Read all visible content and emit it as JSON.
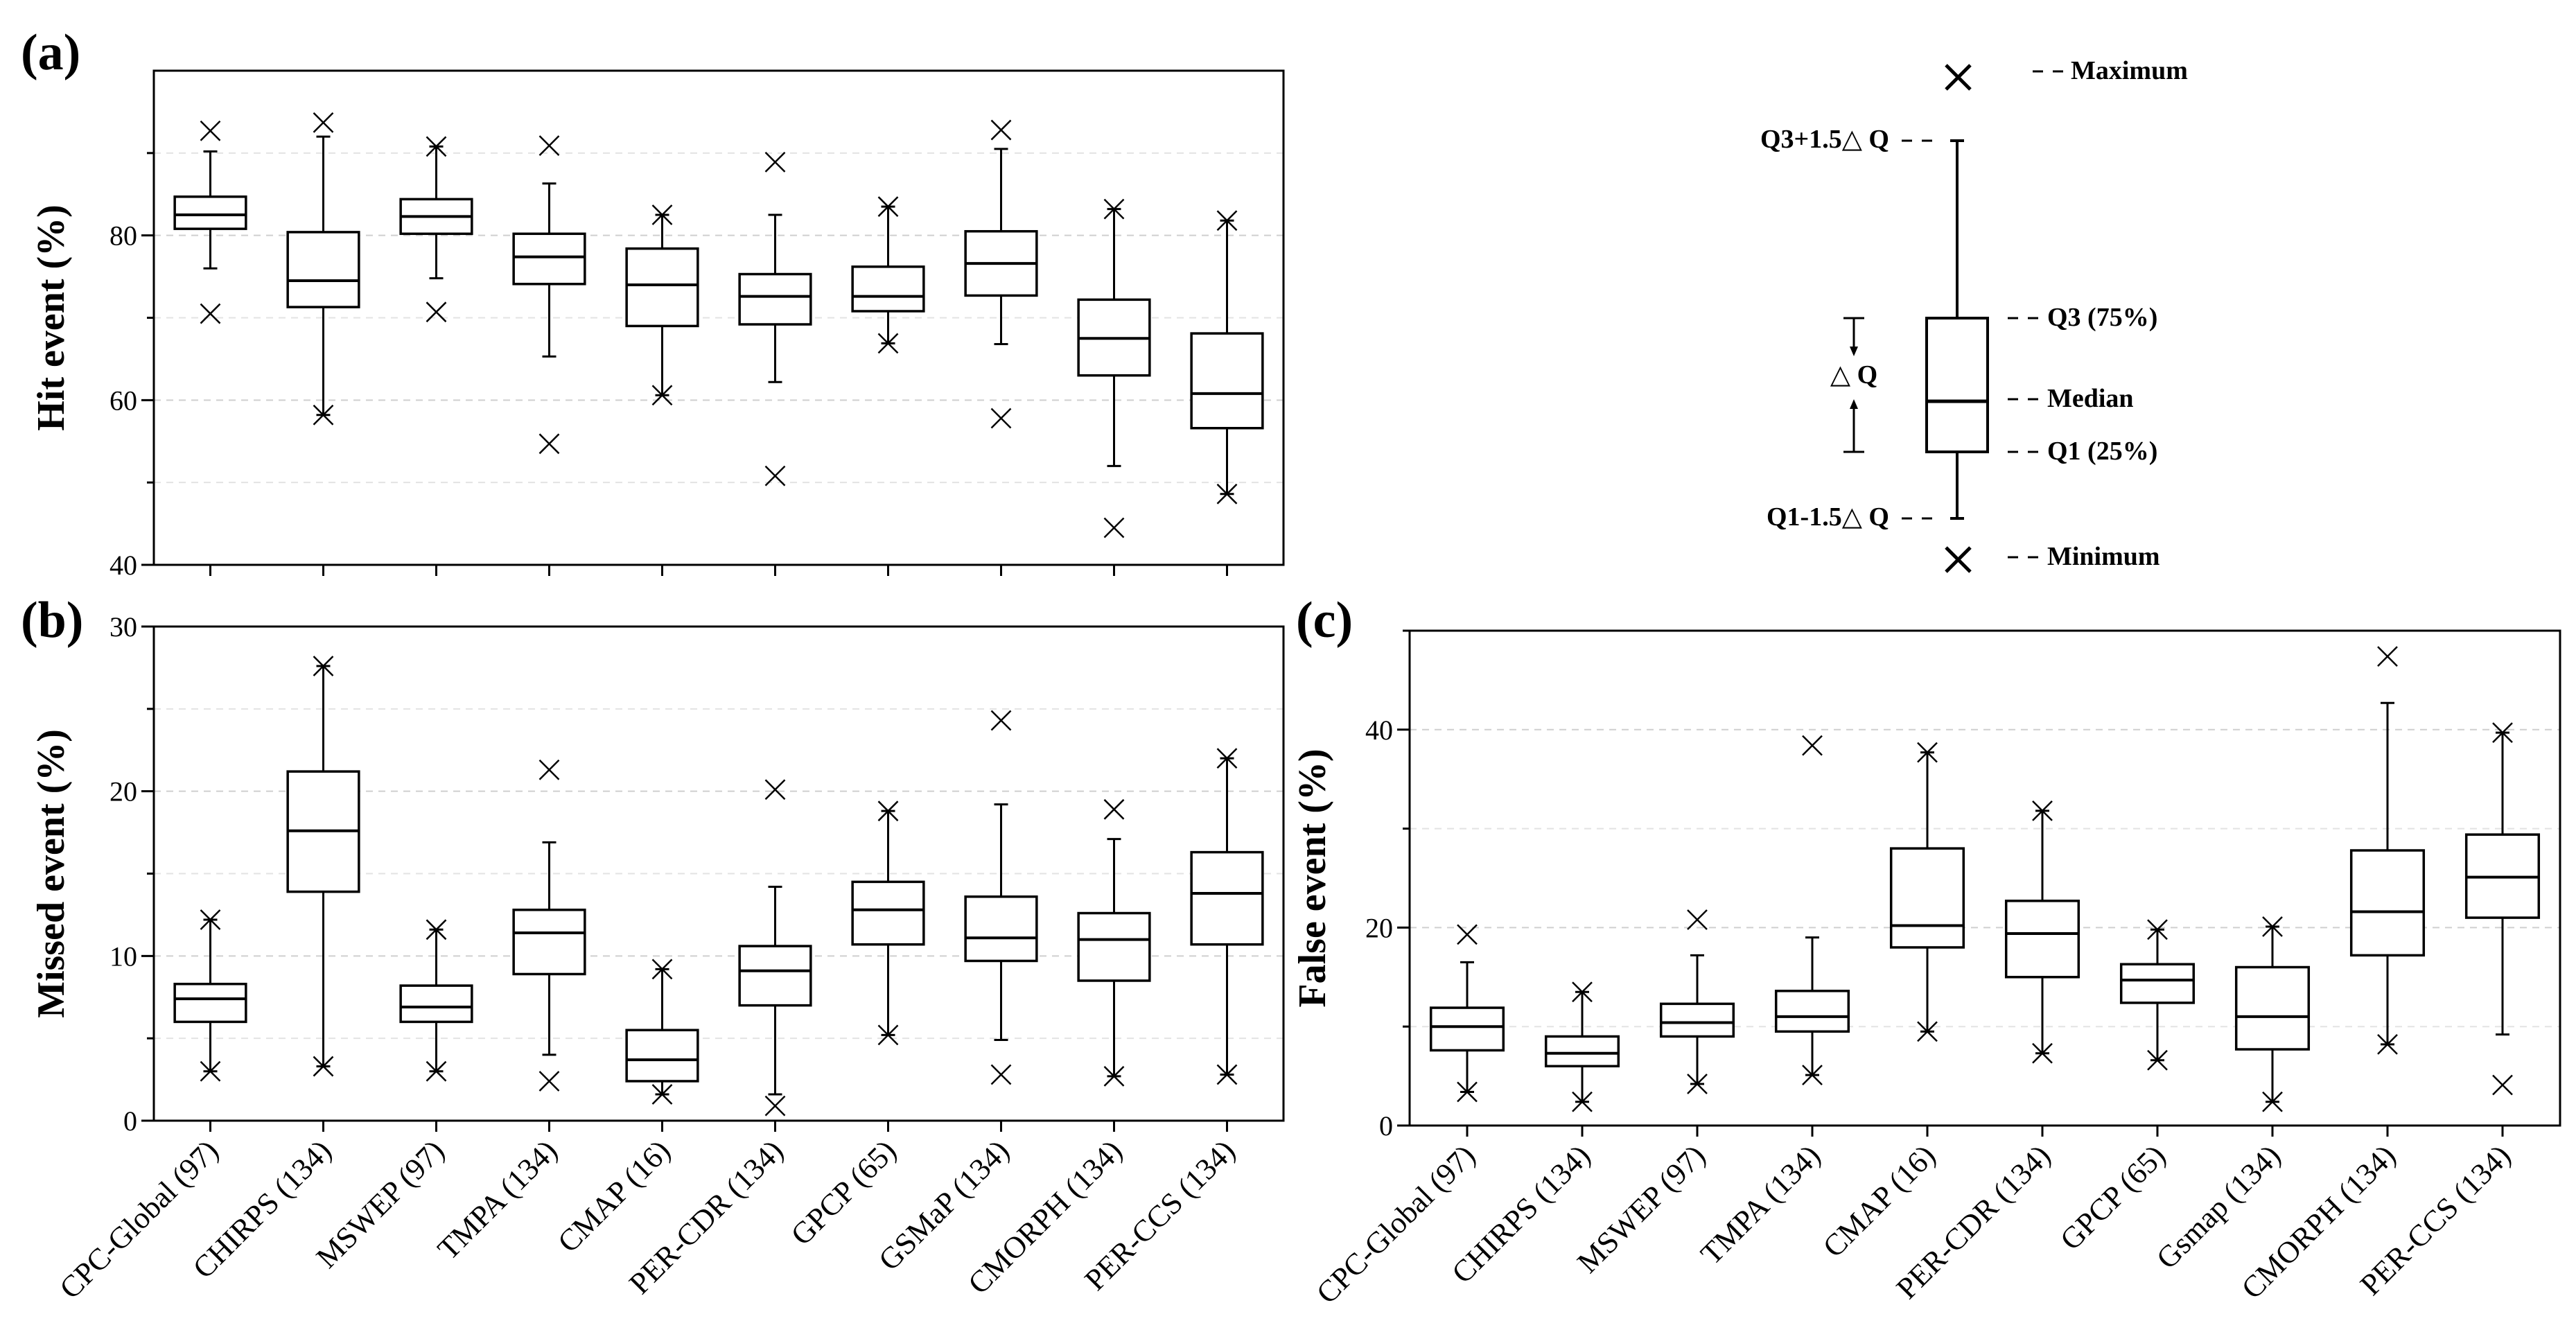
{
  "chart_data": [
    {
      "id": "a",
      "type": "box",
      "panel_label": "(a)",
      "ylabel": "Hit event (%)",
      "ylim": [
        40,
        100
      ],
      "yticks": [
        40,
        60,
        80
      ],
      "grid": "horizontal-dashed",
      "categories": [
        "CPC-Global (97)",
        "CHIRPS (134)",
        "MSWEP (97)",
        "TMPA (134)",
        "CMAP (16)",
        "PER-CDR (134)",
        "GPCP (65)",
        "GSMaP (134)",
        "CMORPH (134)",
        "PER-CCS (134)"
      ],
      "show_category_labels": false,
      "boxes": [
        {
          "min": 70.5,
          "whisker_low": 76,
          "q1": 80.8,
          "median": 82.5,
          "q3": 84.7,
          "whisker_high": 90.2,
          "max": 92.7
        },
        {
          "min": 58.2,
          "whisker_low": 58.2,
          "q1": 71.3,
          "median": 74.5,
          "q3": 80.4,
          "whisker_high": 92,
          "max": 93.7
        },
        {
          "min": 70.7,
          "whisker_low": 74.8,
          "q1": 80.2,
          "median": 82.3,
          "q3": 84.4,
          "whisker_high": 90.8,
          "max": 90.8
        },
        {
          "min": 54.7,
          "whisker_low": 65.3,
          "q1": 74.1,
          "median": 77.4,
          "q3": 80.2,
          "whisker_high": 86.3,
          "max": 90.9
        },
        {
          "min": 60.6,
          "whisker_low": 60.6,
          "q1": 69.0,
          "median": 74.0,
          "q3": 78.4,
          "whisker_high": 82.5,
          "max": 82.5
        },
        {
          "min": 50.8,
          "whisker_low": 62.2,
          "q1": 69.2,
          "median": 72.6,
          "q3": 75.3,
          "whisker_high": 82.5,
          "max": 88.9
        },
        {
          "min": 66.9,
          "whisker_low": 66.9,
          "q1": 70.8,
          "median": 72.6,
          "q3": 76.2,
          "whisker_high": 83.5,
          "max": 83.5
        },
        {
          "min": 57.8,
          "whisker_low": 66.8,
          "q1": 72.7,
          "median": 76.6,
          "q3": 80.5,
          "whisker_high": 90.5,
          "max": 92.8
        },
        {
          "min": 44.5,
          "whisker_low": 52.0,
          "q1": 63.0,
          "median": 67.5,
          "q3": 72.2,
          "whisker_high": 83.2,
          "max": 83.2
        },
        {
          "min": 48.6,
          "whisker_low": 48.6,
          "q1": 56.6,
          "median": 60.8,
          "q3": 68.1,
          "whisker_high": 81.8,
          "max": 81.8
        }
      ]
    },
    {
      "id": "b",
      "type": "box",
      "panel_label": "(b)",
      "ylabel": "Missed event (%)",
      "ylim": [
        0,
        30
      ],
      "yticks": [
        0,
        10,
        20,
        30
      ],
      "grid": "horizontal-dashed",
      "categories": [
        "CPC-Global (97)",
        "CHIRPS (134)",
        "MSWEP (97)",
        "TMPA (134)",
        "CMAP (16)",
        "PER-CDR (134)",
        "GPCP (65)",
        "GSMaP (134)",
        "CMORPH (134)",
        "PER-CCS (134)"
      ],
      "show_category_labels": true,
      "boxes": [
        {
          "min": 3.0,
          "whisker_low": 3.0,
          "q1": 6.0,
          "median": 7.4,
          "q3": 8.3,
          "whisker_high": 12.2,
          "max": 12.2
        },
        {
          "min": 3.3,
          "whisker_low": 3.3,
          "q1": 13.9,
          "median": 17.6,
          "q3": 21.2,
          "whisker_high": 27.6,
          "max": 27.6
        },
        {
          "min": 3.0,
          "whisker_low": 3.0,
          "q1": 6.0,
          "median": 6.9,
          "q3": 8.2,
          "whisker_high": 11.6,
          "max": 11.6
        },
        {
          "min": 2.4,
          "whisker_low": 4.0,
          "q1": 8.9,
          "median": 11.4,
          "q3": 12.8,
          "whisker_high": 16.9,
          "max": 21.3
        },
        {
          "min": 1.6,
          "whisker_low": 1.6,
          "q1": 2.4,
          "median": 3.7,
          "q3": 5.5,
          "whisker_high": 9.2,
          "max": 9.2
        },
        {
          "min": 0.9,
          "whisker_low": 1.6,
          "q1": 7.0,
          "median": 9.1,
          "q3": 10.6,
          "whisker_high": 14.2,
          "max": 20.1
        },
        {
          "min": 5.2,
          "whisker_low": 5.2,
          "q1": 10.7,
          "median": 12.8,
          "q3": 14.5,
          "whisker_high": 18.8,
          "max": 18.8
        },
        {
          "min": 2.8,
          "whisker_low": 4.9,
          "q1": 9.7,
          "median": 11.1,
          "q3": 13.6,
          "whisker_high": 19.2,
          "max": 24.3
        },
        {
          "min": 2.7,
          "whisker_low": 2.7,
          "q1": 8.5,
          "median": 11.0,
          "q3": 12.6,
          "whisker_high": 17.1,
          "max": 18.9
        },
        {
          "min": 2.8,
          "whisker_low": 2.8,
          "q1": 10.7,
          "median": 13.8,
          "q3": 16.3,
          "whisker_high": 22.0,
          "max": 22.0
        }
      ]
    },
    {
      "id": "c",
      "type": "box",
      "panel_label": "(c)",
      "ylabel": "False event (%)",
      "ylim": [
        0,
        50
      ],
      "yticks": [
        0,
        20,
        40
      ],
      "grid": "horizontal-dashed",
      "categories": [
        "CPC-Global (97)",
        "CHIRPS (134)",
        "MSWEP (97)",
        "TMPA (134)",
        "CMAP (16)",
        "PER-CDR (134)",
        "GPCP (65)",
        "Gsmap (134)",
        "CMORPH (134)",
        "PER-CCS (134)"
      ],
      "show_category_labels": true,
      "boxes": [
        {
          "min": 3.4,
          "whisker_low": 3.4,
          "q1": 7.6,
          "median": 10.0,
          "q3": 11.9,
          "whisker_high": 16.5,
          "max": 19.3
        },
        {
          "min": 2.4,
          "whisker_low": 2.4,
          "q1": 6.0,
          "median": 7.3,
          "q3": 9.0,
          "whisker_high": 13.5,
          "max": 13.5
        },
        {
          "min": 4.2,
          "whisker_low": 4.2,
          "q1": 9.0,
          "median": 10.4,
          "q3": 12.3,
          "whisker_high": 17.2,
          "max": 20.8
        },
        {
          "min": 5.1,
          "whisker_low": 5.1,
          "q1": 9.5,
          "median": 11.0,
          "q3": 13.6,
          "whisker_high": 19.0,
          "max": 38.4
        },
        {
          "min": 9.5,
          "whisker_low": 9.5,
          "q1": 18.0,
          "median": 20.2,
          "q3": 28.0,
          "whisker_high": 37.7,
          "max": 37.7
        },
        {
          "min": 7.3,
          "whisker_low": 7.3,
          "q1": 15.0,
          "median": 19.4,
          "q3": 22.7,
          "whisker_high": 31.8,
          "max": 31.8
        },
        {
          "min": 6.6,
          "whisker_low": 6.6,
          "q1": 12.4,
          "median": 14.7,
          "q3": 16.3,
          "whisker_high": 19.8,
          "max": 19.8
        },
        {
          "min": 2.4,
          "whisker_low": 2.4,
          "q1": 7.7,
          "median": 11.0,
          "q3": 16.0,
          "whisker_high": 20.1,
          "max": 20.1
        },
        {
          "min": 8.2,
          "whisker_low": 8.2,
          "q1": 17.2,
          "median": 21.6,
          "q3": 27.8,
          "whisker_high": 42.7,
          "max": 47.4
        },
        {
          "min": 4.1,
          "whisker_low": 9.2,
          "q1": 21.0,
          "median": 25.1,
          "q3": 29.4,
          "whisker_high": 39.7,
          "max": 39.7
        }
      ]
    }
  ],
  "legend": {
    "maximum": "Maximum",
    "upper_whisker": "Q3+1.5△ Q",
    "q3": "Q3 (75%)",
    "iqr": "△ Q",
    "median": "Median",
    "q1": "Q1 (25%)",
    "lower_whisker": "Q1-1.5△ Q",
    "minimum": "Minimum"
  }
}
